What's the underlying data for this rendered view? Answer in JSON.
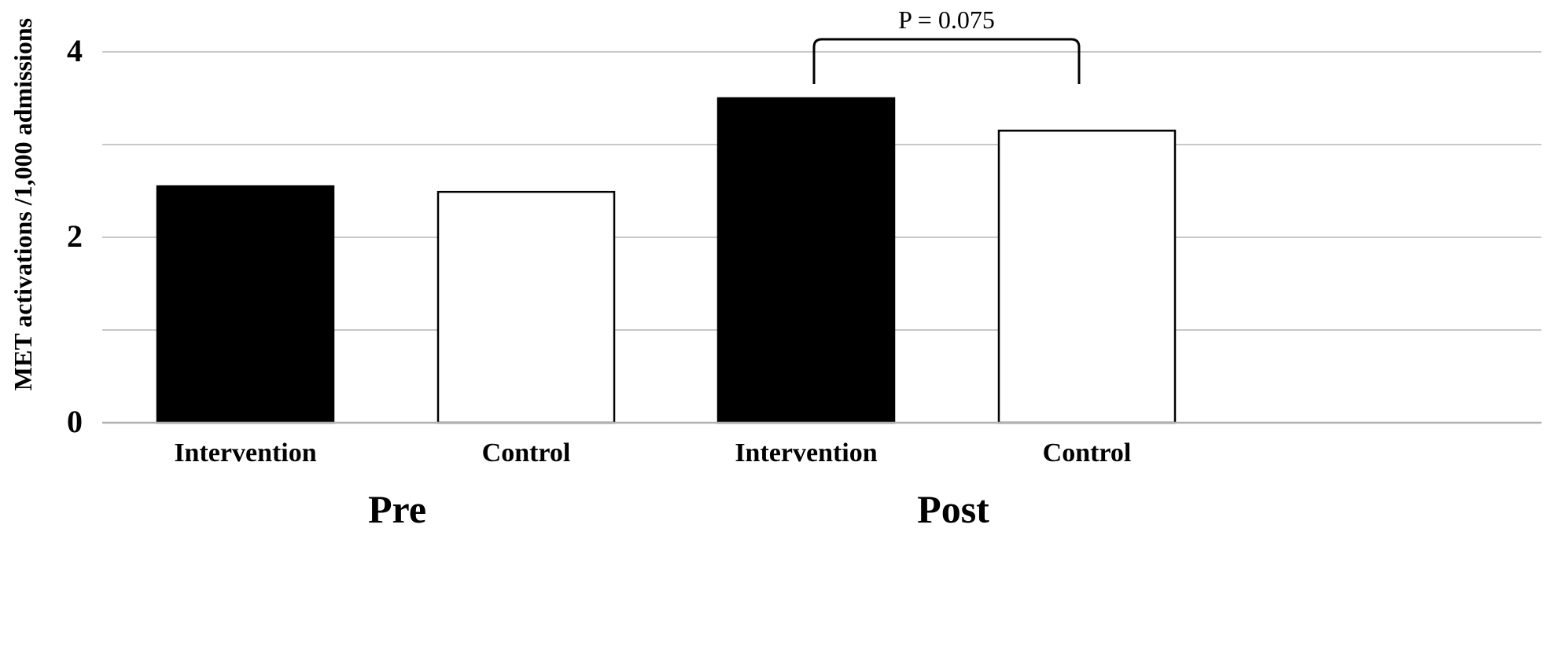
{
  "chart_data": {
    "type": "bar",
    "ylabel": "MET activations /1,000 admissions",
    "ylim": [
      0,
      4
    ],
    "yticks": [
      0,
      2,
      4
    ],
    "grid": true,
    "groups": [
      {
        "label": "Pre",
        "bars": [
          {
            "label": "Intervention",
            "value": 2.55,
            "color": "#000000"
          },
          {
            "label": "Control",
            "value": 2.49,
            "color": "#ffffff"
          }
        ]
      },
      {
        "label": "Post",
        "bars": [
          {
            "label": "Intervention",
            "value": 3.5,
            "color": "#000000"
          },
          {
            "label": "Control",
            "value": 3.15,
            "color": "#ffffff"
          }
        ]
      }
    ],
    "annotation": {
      "text": "P = 0.075",
      "group": "Post"
    }
  }
}
